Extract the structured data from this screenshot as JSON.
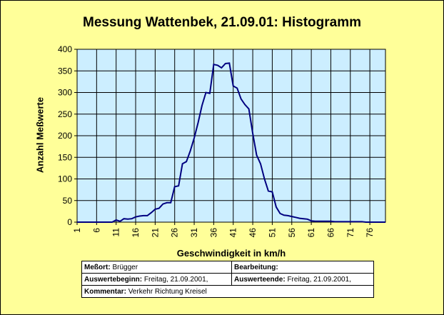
{
  "chart_data": {
    "type": "line",
    "title": "Messung Wattenbek, 21.09.01: Histogramm",
    "xlabel": "Geschwindigkeit in km/h",
    "ylabel": "Anzahl Meßwerte",
    "xlim": [
      1,
      80
    ],
    "ylim": [
      0,
      400
    ],
    "yticks": [
      "0",
      "50",
      "100",
      "150",
      "200",
      "250",
      "300",
      "350",
      "400"
    ],
    "xticks": [
      "1",
      "6",
      "11",
      "16",
      "21",
      "26",
      "31",
      "36",
      "41",
      "46",
      "51",
      "56",
      "61",
      "66",
      "71",
      "76"
    ],
    "grid": true,
    "colors": {
      "line": "#000080",
      "plot_background": "#cceeff",
      "frame_background": "#ffff99",
      "gridline": "#000000"
    },
    "series": [
      {
        "x": [
          1,
          2,
          3,
          4,
          5,
          6,
          7,
          8,
          9,
          10,
          11,
          12,
          13,
          14,
          15,
          16,
          17,
          18,
          19,
          20,
          21,
          22,
          23,
          24,
          25,
          26,
          27,
          28,
          29,
          30,
          31,
          32,
          33,
          34,
          35,
          36,
          37,
          38,
          39,
          40,
          41,
          42,
          43,
          44,
          45,
          46,
          47,
          48,
          49,
          50,
          51,
          52,
          53,
          54,
          55,
          56,
          57,
          58,
          59,
          60,
          61,
          62,
          63,
          64,
          65,
          66,
          67,
          68,
          69,
          70,
          71,
          72,
          73,
          74,
          75,
          76,
          77,
          78,
          79,
          80
        ],
        "values": [
          0,
          0,
          0,
          0,
          0,
          0,
          0,
          0,
          0,
          0,
          5,
          2,
          8,
          7,
          8,
          12,
          14,
          15,
          15,
          22,
          30,
          32,
          42,
          45,
          45,
          82,
          84,
          135,
          140,
          165,
          195,
          230,
          270,
          300,
          298,
          365,
          363,
          357,
          367,
          368,
          315,
          310,
          285,
          272,
          262,
          205,
          155,
          135,
          100,
          72,
          70,
          35,
          20,
          16,
          15,
          13,
          11,
          9,
          8,
          7,
          3,
          2,
          2,
          2,
          2,
          2,
          1,
          1,
          1,
          1,
          1,
          1,
          1,
          1,
          0,
          0,
          0,
          0,
          0,
          0
        ]
      }
    ]
  },
  "info": {
    "messort_label": "Meßort:",
    "messort_value": "Brügger",
    "bearbeitung_label": "Bearbeitung:",
    "bearbeitung_value": "",
    "beginn_label": "Auswertebeginn:",
    "beginn_value": "Freitag, 21.09.2001,",
    "ende_label": "Auswerteende:",
    "ende_value": "Freitag, 21.09.2001,",
    "kommentar_label": "Kommentar:",
    "kommentar_value": "Verkehr Richtung Kreisel"
  }
}
